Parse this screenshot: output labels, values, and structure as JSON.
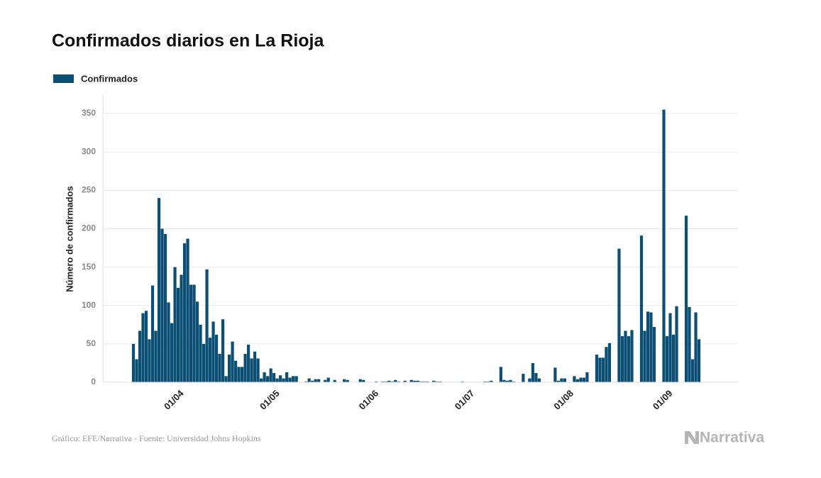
{
  "chart_data": {
    "type": "bar",
    "title": "Confirmados diarios en La Rioja",
    "y_label": "Número de confirmados",
    "source": "Gráfico: EFE/Narrativa - Fuente: Universidad Johns Hopkins",
    "brand": "Narrativa",
    "categories": [
      null,
      null,
      null,
      null,
      null,
      null,
      null,
      null,
      null,
      null,
      null,
      null,
      null,
      null,
      "01/04",
      null,
      null,
      null,
      null,
      null,
      null,
      null,
      null,
      null,
      null,
      null,
      null,
      null,
      null,
      null,
      null,
      null,
      null,
      null,
      null,
      null,
      null,
      null,
      null,
      null,
      null,
      null,
      null,
      null,
      "01/05",
      null,
      null,
      null,
      null,
      null,
      null,
      null,
      null,
      null,
      null,
      null,
      null,
      null,
      null,
      null,
      null,
      null,
      null,
      null,
      null,
      null,
      null,
      null,
      null,
      null,
      null,
      null,
      null,
      null,
      null,
      "01/06",
      null,
      null,
      null,
      null,
      null,
      null,
      null,
      null,
      null,
      null,
      null,
      null,
      null,
      null,
      null,
      null,
      null,
      null,
      null,
      null,
      null,
      null,
      null,
      null,
      null,
      null,
      null,
      null,
      null,
      "01/07",
      null,
      null,
      null,
      null,
      null,
      null,
      null,
      null,
      null,
      null,
      null,
      null,
      null,
      null,
      null,
      null,
      null,
      null,
      null,
      null,
      null,
      null,
      null,
      null,
      null,
      null,
      null,
      null,
      null,
      null,
      "01/08",
      null,
      null,
      null,
      null,
      null,
      null,
      null,
      null,
      null,
      null,
      null,
      null,
      null,
      null,
      null,
      null,
      null,
      null,
      null,
      null,
      null,
      null,
      null,
      null,
      null,
      null,
      null,
      null,
      null,
      null,
      "01/09",
      null,
      null,
      null,
      null,
      null,
      null,
      null,
      null,
      null,
      null,
      null
    ],
    "series": [
      {
        "name": "Confirmados",
        "color": "#0b4f75",
        "values": [
          50,
          30,
          67,
          90,
          93,
          56,
          126,
          67,
          240,
          200,
          193,
          104,
          77,
          150,
          123,
          140,
          181,
          187,
          127,
          127,
          105,
          75,
          50,
          147,
          58,
          79,
          62,
          37,
          82,
          8,
          36,
          53,
          28,
          20,
          20,
          37,
          49,
          31,
          40,
          31,
          5,
          13,
          8,
          18,
          12,
          5,
          9,
          5,
          13,
          6,
          8,
          8,
          0,
          0,
          1,
          5,
          2,
          4,
          4,
          0,
          3,
          6,
          0,
          3,
          0,
          0,
          4,
          3,
          0,
          0,
          0,
          4,
          3,
          0,
          0,
          0,
          1,
          0,
          1,
          1,
          2,
          1,
          3,
          1,
          0,
          2,
          0,
          3,
          2,
          2,
          1,
          1,
          1,
          0,
          2,
          1,
          1,
          0,
          0,
          0,
          0,
          0,
          0,
          1,
          0,
          0,
          0,
          0,
          0,
          0,
          1,
          1,
          2,
          0,
          0,
          20,
          3,
          2,
          3,
          1,
          0,
          0,
          11,
          0,
          5,
          25,
          12,
          5,
          0,
          0,
          0,
          0,
          19,
          2,
          5,
          5,
          0,
          0,
          8,
          4,
          6,
          6,
          13,
          0,
          0,
          36,
          32,
          32,
          46,
          51,
          0,
          0,
          174,
          60,
          67,
          60,
          68,
          0,
          0,
          191,
          67,
          92,
          91,
          72,
          0,
          0,
          355,
          60,
          90,
          62,
          99,
          0,
          0,
          217,
          98,
          30,
          91,
          56,
          0
        ]
      }
    ],
    "ylim": [
      0,
      375
    ],
    "yticks": [
      0,
      50,
      100,
      150,
      200,
      250,
      300,
      350
    ],
    "grid": true
  }
}
